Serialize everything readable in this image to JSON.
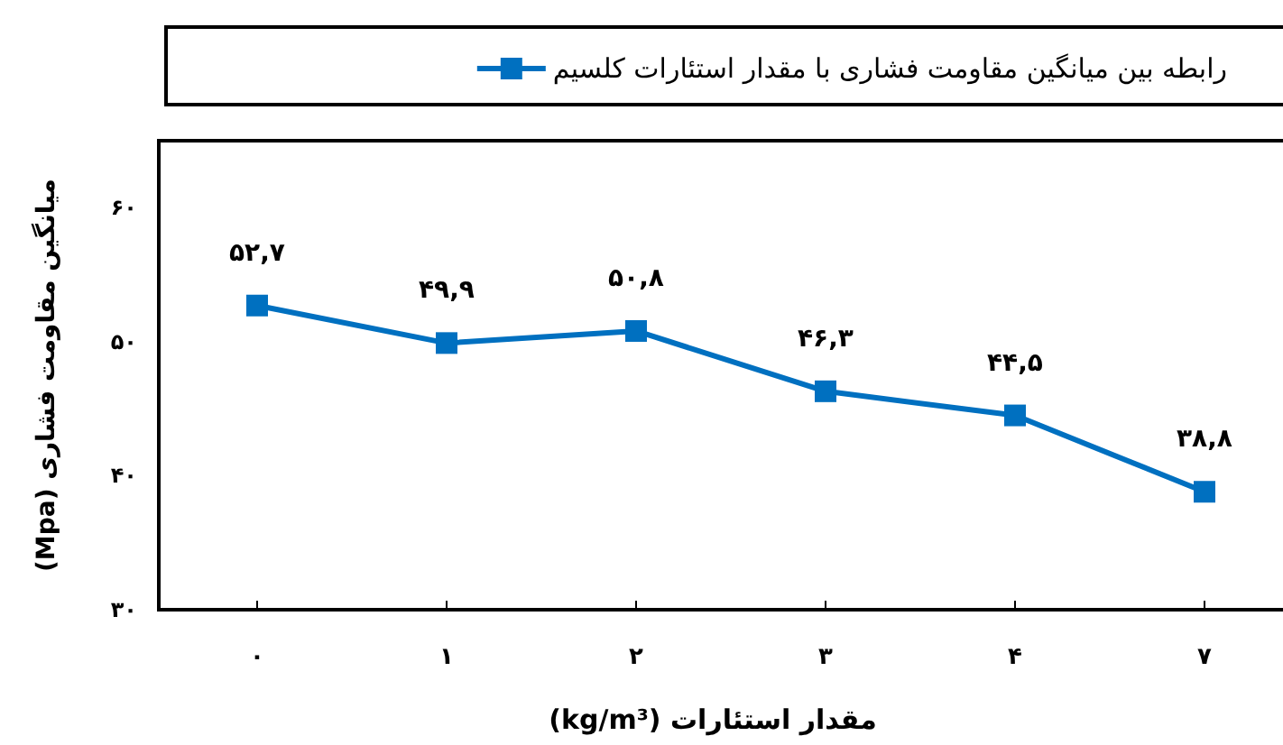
{
  "chart_data": {
    "type": "line",
    "categories": [
      "۰",
      "۱",
      "۲",
      "۳",
      "۴",
      "۷"
    ],
    "series": [
      {
        "name": "رابطه بین میانگین مقاومت فشاری با مقدار استئارات کلسیم",
        "color": "#0070c0",
        "values": [
          52.7,
          49.9,
          50.8,
          46.3,
          44.5,
          38.8
        ],
        "value_labels": [
          "۵۲,۷",
          "۴۹,۹",
          "۵۰,۸",
          "۴۶,۳",
          "۴۴,۵",
          "۳۸,۸"
        ]
      }
    ],
    "xlabel": "مقدار استئارات (kg/m³)",
    "ylabel": "میانگین مقاومت فشاری (Mpa)",
    "ylim": [
      30,
      65
    ],
    "yticks": [
      {
        "value": 30,
        "label": "۳۰"
      },
      {
        "value": 40,
        "label": "۴۰"
      },
      {
        "value": 50,
        "label": "۵۰"
      },
      {
        "value": 60,
        "label": "۶۰"
      }
    ],
    "marker": "square",
    "legend": "top",
    "grid": false
  }
}
